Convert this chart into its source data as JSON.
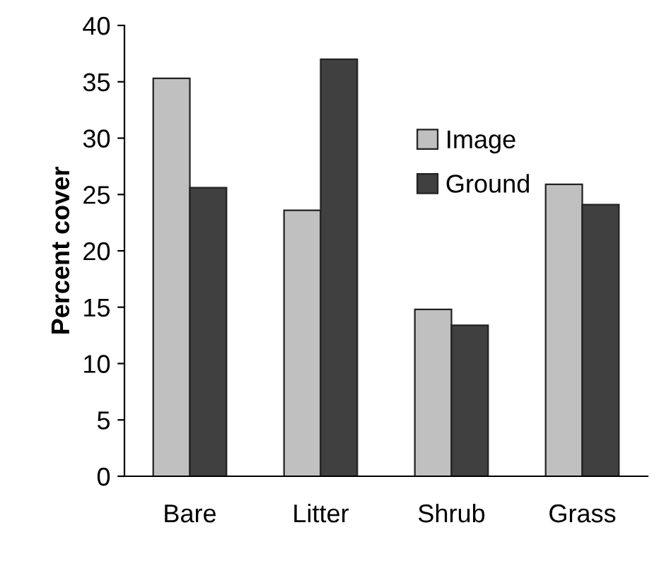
{
  "chart_data": {
    "type": "bar",
    "ylabel": "Percent cover",
    "categories": [
      "Bare",
      "Litter",
      "Shrub",
      "Grass"
    ],
    "series": [
      {
        "name": "Image",
        "color": "#c0c0c0",
        "values": [
          35.3,
          23.6,
          14.8,
          25.9
        ]
      },
      {
        "name": "Ground",
        "color": "#404040",
        "values": [
          25.6,
          37.0,
          13.4,
          24.1
        ]
      }
    ],
    "ylim": [
      0,
      40
    ],
    "yticks": [
      0,
      5,
      10,
      15,
      20,
      25,
      30,
      35,
      40
    ],
    "grid": false,
    "legend": "top right"
  }
}
